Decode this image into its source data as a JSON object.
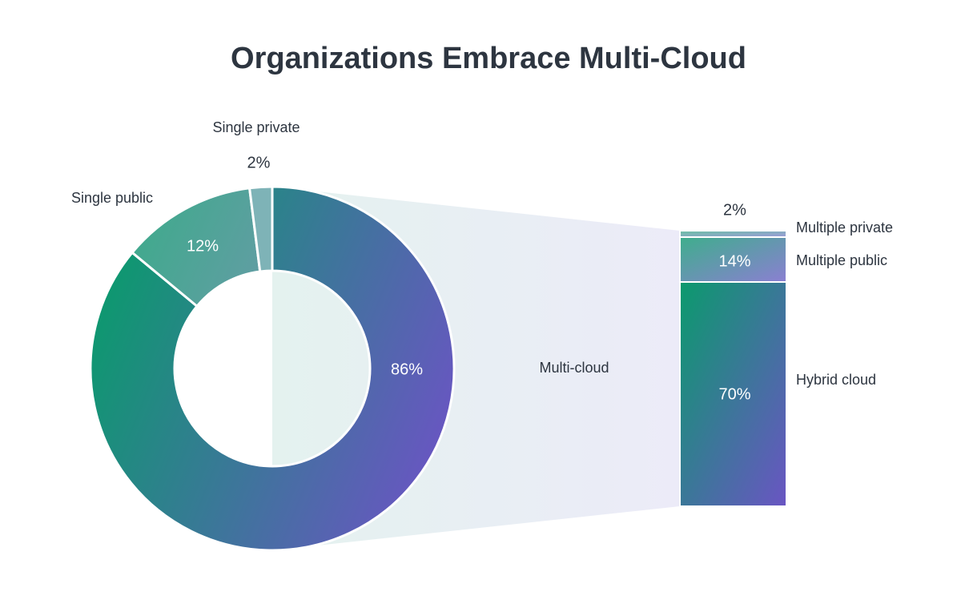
{
  "chart_data": {
    "type": "donut",
    "title": "Organizations Embrace Multi-Cloud",
    "categories": [
      "Multi-cloud",
      "Single public",
      "Single private"
    ],
    "values": [
      86,
      12,
      2
    ],
    "value_labels": [
      "86%",
      "12%",
      "2%"
    ],
    "colors": [
      [
        "#0b9a6d",
        "#6a55c3"
      ],
      [
        "#3faa8c",
        "#5f9ea2"
      ],
      [
        "#7eb3b7",
        "#7eb3b7"
      ]
    ],
    "breakdown": {
      "type": "stacked-bar",
      "categories": [
        "Hybrid cloud",
        "Multiple public",
        "Multiple private"
      ],
      "values": [
        70,
        14,
        2
      ],
      "value_labels": [
        "70%",
        "14%",
        "2%"
      ],
      "colors": [
        [
          "#0b9a6d",
          "#6a55c3"
        ],
        [
          "#3eae8c",
          "#8b7fd2"
        ],
        [
          "#6cc0a4",
          "#9c9bd9"
        ]
      ]
    }
  }
}
